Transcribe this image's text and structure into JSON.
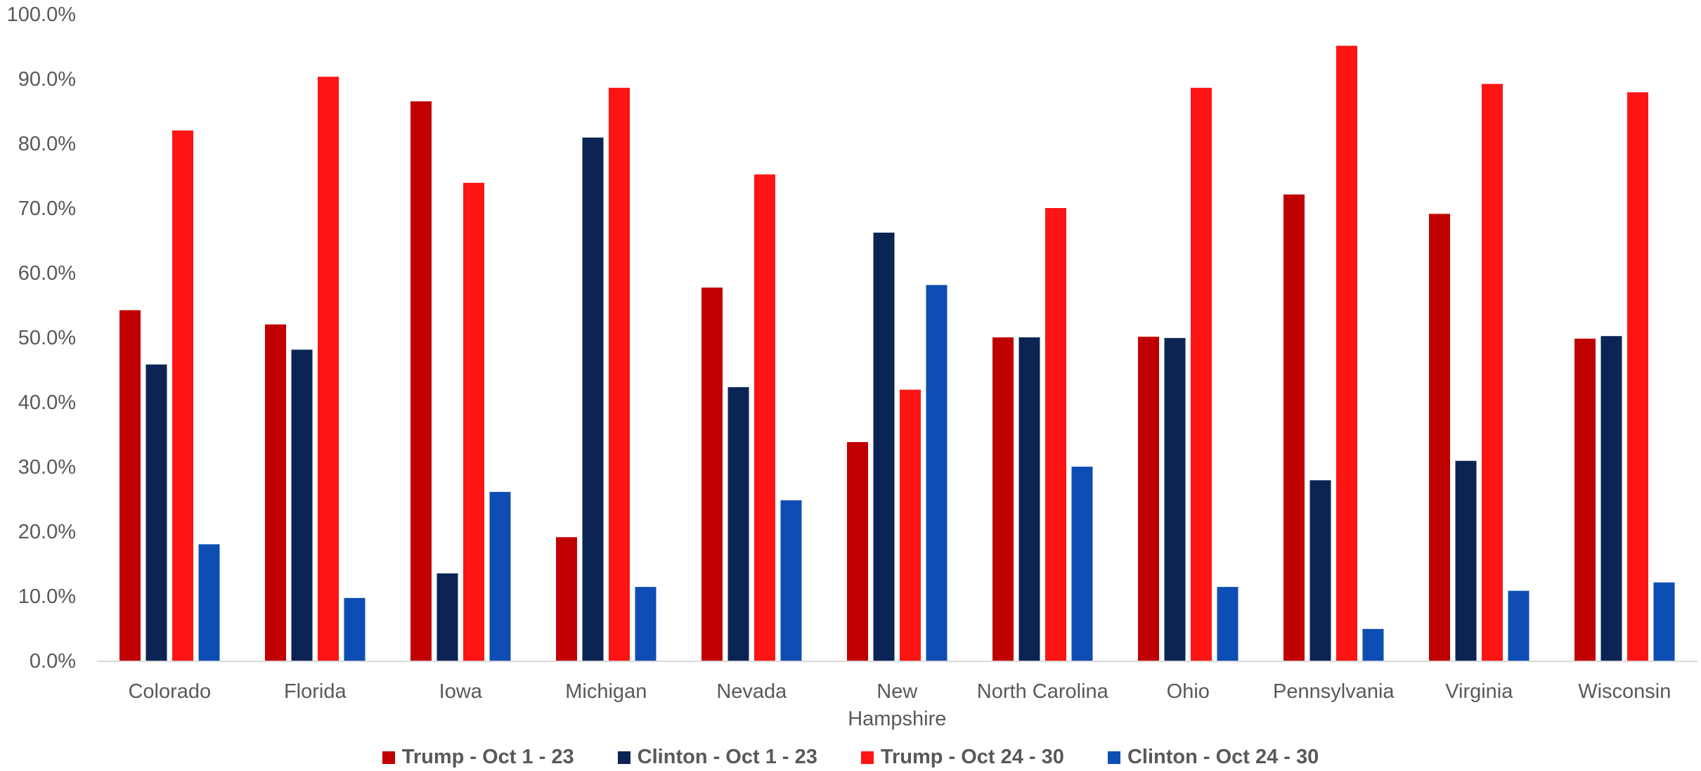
{
  "chart_data": {
    "type": "bar",
    "categories": [
      "Colorado",
      "Florida",
      "Iowa",
      "Michigan",
      "Nevada",
      "New Hampshire",
      "North Carolina",
      "Ohio",
      "Pennsylvania",
      "Virginia",
      "Wisconsin"
    ],
    "category_lines": [
      [
        "Colorado"
      ],
      [
        "Florida"
      ],
      [
        "Iowa"
      ],
      [
        "Michigan"
      ],
      [
        "Nevada"
      ],
      [
        "New",
        "Hampshire"
      ],
      [
        "North Carolina"
      ],
      [
        "Ohio"
      ],
      [
        "Pennsylvania"
      ],
      [
        "Virginia"
      ],
      [
        "Wisconsin"
      ]
    ],
    "series": [
      {
        "name": "Trump - Oct 1 - 23",
        "color": "#C00000",
        "values": [
          54.2,
          52.0,
          86.5,
          19.1,
          57.7,
          33.8,
          50.0,
          50.1,
          72.1,
          69.1,
          49.8
        ]
      },
      {
        "name": "Clinton - Oct 1 - 23",
        "color": "#0B2454",
        "values": [
          45.8,
          48.1,
          13.5,
          80.9,
          42.3,
          66.2,
          50.0,
          49.9,
          27.9,
          30.9,
          50.2
        ]
      },
      {
        "name": "Trump - Oct 24 - 30",
        "color": "#FF1414",
        "values": [
          82.0,
          90.3,
          73.9,
          88.6,
          75.2,
          41.9,
          70.0,
          88.6,
          95.1,
          89.2,
          87.9
        ]
      },
      {
        "name": "Clinton - Oct 24 - 30",
        "color": "#0E4DB4",
        "values": [
          18.0,
          9.7,
          26.1,
          11.4,
          24.8,
          58.1,
          30.0,
          11.4,
          4.9,
          10.8,
          12.1
        ]
      }
    ],
    "ylim": [
      0,
      100
    ],
    "yticks": [
      "0.0%",
      "10.0%",
      "20.0%",
      "30.0%",
      "40.0%",
      "50.0%",
      "60.0%",
      "70.0%",
      "80.0%",
      "90.0%",
      "100.0%"
    ],
    "grid": false,
    "legend_position": "bottom",
    "title": "",
    "xlabel": "",
    "ylabel": ""
  }
}
